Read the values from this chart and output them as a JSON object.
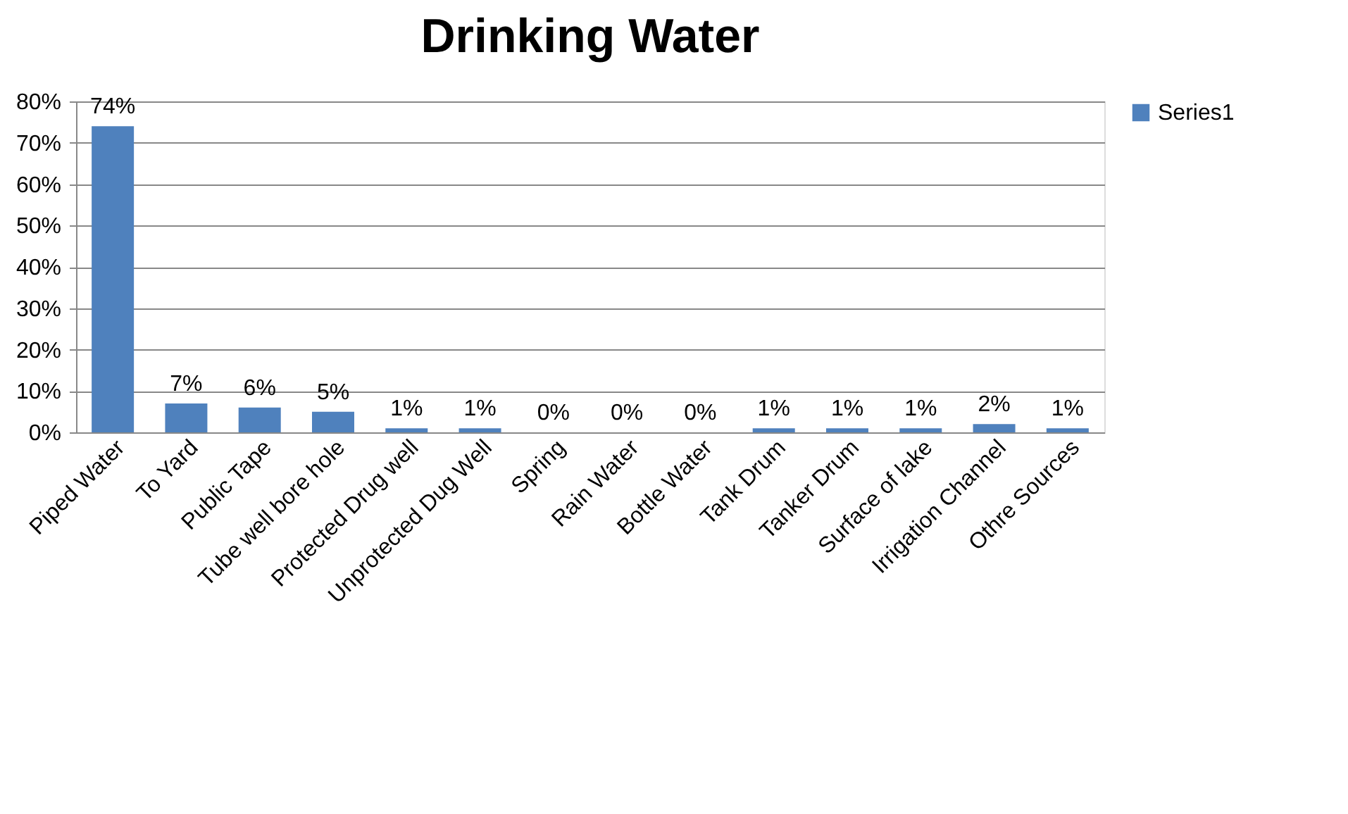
{
  "chart_data": {
    "type": "bar",
    "title": "Drinking Water",
    "categories": [
      "Piped Water",
      "To Yard",
      "Public Tape",
      "Tube well bore hole",
      "Protected Drug well",
      "Unprotected Dug Well",
      "Spring",
      "Rain Water",
      "Bottle Water",
      "Tank Drum",
      "Tanker Drum",
      "Surface of lake",
      "Irrigation Channel",
      "Othre Sources"
    ],
    "series": [
      {
        "name": "Series1",
        "color": "#4f81bd",
        "values": [
          74,
          7,
          6,
          5,
          1,
          1,
          0,
          0,
          0,
          1,
          1,
          1,
          2,
          1
        ]
      }
    ],
    "ylim": [
      0,
      80
    ],
    "yticks": [
      {
        "value": 0,
        "label": "0%"
      },
      {
        "value": 10,
        "label": "10%"
      },
      {
        "value": 20,
        "label": "20%"
      },
      {
        "value": 30,
        "label": "30%"
      },
      {
        "value": 40,
        "label": "40%"
      },
      {
        "value": 50,
        "label": "50%"
      },
      {
        "value": 60,
        "label": "60%"
      },
      {
        "value": 70,
        "label": "70%"
      },
      {
        "value": 80,
        "label": "80%"
      }
    ],
    "value_labels": [
      "74%",
      "7%",
      "6%",
      "5%",
      "1%",
      "1%",
      "0%",
      "0%",
      "0%",
      "1%",
      "1%",
      "1%",
      "2%",
      "1%"
    ],
    "grid": "y",
    "legend": "right"
  }
}
